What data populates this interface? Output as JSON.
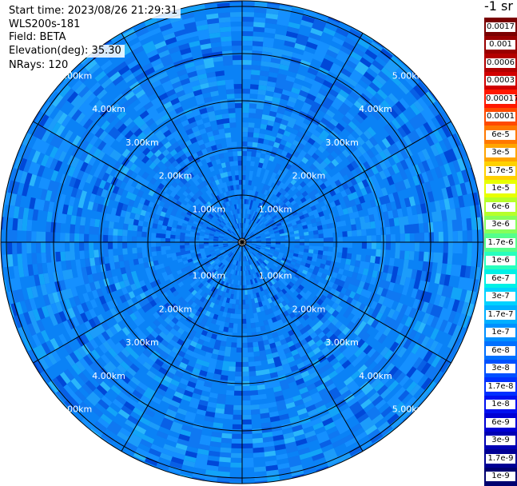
{
  "info": {
    "start_time": "Start time: 2023/08/26 21:29:31",
    "station": "WLS200s-181",
    "field": "Field: BETA",
    "elevation": "Elevation(deg): 35.30",
    "nrays": "NRays: 120"
  },
  "colorbar": {
    "unit": "-1 sr",
    "entries": [
      {
        "label": "0.0017",
        "color": "#7a0000"
      },
      {
        "label": "0.001",
        "color": "#990000"
      },
      {
        "label": "0.0006",
        "color": "#b30000"
      },
      {
        "label": "0.0003",
        "color": "#d10000"
      },
      {
        "label": "0.00017",
        "color": "#ff1800"
      },
      {
        "label": "0.0001",
        "color": "#ff4a00"
      },
      {
        "label": "6e-5",
        "color": "#ff7800"
      },
      {
        "label": "3e-5",
        "color": "#ffa400"
      },
      {
        "label": "1.7e-5",
        "color": "#ffd100"
      },
      {
        "label": "1e-5",
        "color": "#e8ff00"
      },
      {
        "label": "6e-6",
        "color": "#b6ff2a"
      },
      {
        "label": "3e-6",
        "color": "#86ff5a"
      },
      {
        "label": "1.7e-6",
        "color": "#55ff8c"
      },
      {
        "label": "1e-6",
        "color": "#28ffbd"
      },
      {
        "label": "6e-7",
        "color": "#00f0e6"
      },
      {
        "label": "3e-7",
        "color": "#00d2ff"
      },
      {
        "label": "1.7e-7",
        "color": "#00b0ff"
      },
      {
        "label": "1e-7",
        "color": "#0090ff"
      },
      {
        "label": "6e-8",
        "color": "#0070ff"
      },
      {
        "label": "3e-8",
        "color": "#0050ff"
      },
      {
        "label": "1.7e-8",
        "color": "#0030ff"
      },
      {
        "label": "1e-8",
        "color": "#0010f0"
      },
      {
        "label": "6e-9",
        "color": "#0000d4"
      },
      {
        "label": "3e-9",
        "color": "#0000b4"
      },
      {
        "label": "1.7e-9",
        "color": "#000094"
      },
      {
        "label": "1e-9",
        "color": "#000070"
      }
    ]
  },
  "range_rings": {
    "labels": [
      "1.00km",
      "2.00km",
      "3.00km",
      "4.00km",
      "5.00km"
    ]
  },
  "plot_colors": {
    "background_palette": [
      "#0a6ff0",
      "#0a82f6",
      "#1590ff",
      "#0f78f2",
      "#1c9cfa",
      "#0860e6",
      "#12a4f8",
      "#0048d8",
      "#2ab6fb"
    ],
    "grid": "#000000"
  }
}
